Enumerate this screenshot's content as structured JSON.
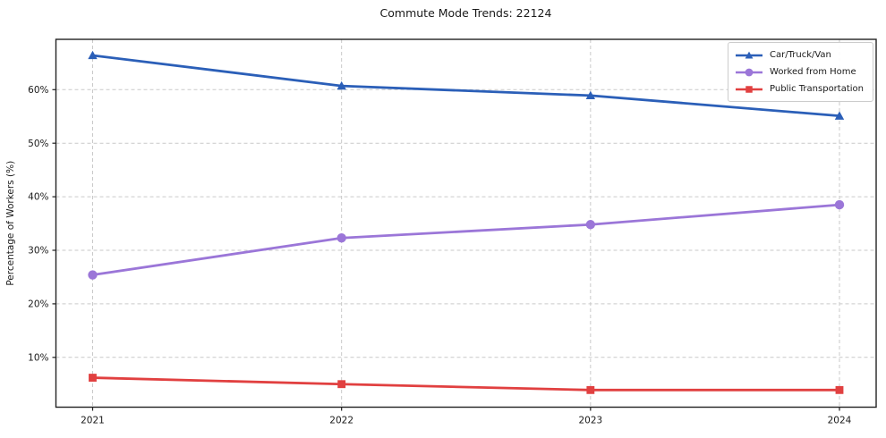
{
  "title": "Commute Mode Trends: 22124",
  "chart_data": {
    "type": "line",
    "title": "Commute Mode Trends: 22124",
    "xlabel": "",
    "ylabel": "Percentage of Workers (%)",
    "x_tick_labels": [
      "2021",
      "2022",
      "2023",
      "2024"
    ],
    "y_ticks": [
      10,
      20,
      30,
      40,
      50,
      60
    ],
    "y_tick_labels": [
      "10%",
      "20%",
      "30%",
      "40%",
      "50%",
      "60%"
    ],
    "ylim": [
      0.7,
      69.4
    ],
    "grid": "dashed-both-axes",
    "legend_position": "upper right",
    "series": [
      {
        "name": "Car/Truck/Van",
        "color": "#2b5fb8",
        "marker": "triangle",
        "values": [
          66.4,
          60.7,
          58.9,
          55.1
        ]
      },
      {
        "name": "Worked from Home",
        "color": "#9b76d8",
        "marker": "circle",
        "values": [
          25.4,
          32.3,
          34.8,
          38.5
        ]
      },
      {
        "name": "Public Transportation",
        "color": "#e14040",
        "marker": "square",
        "values": [
          6.2,
          5.0,
          3.9,
          3.9
        ]
      }
    ],
    "colors": {
      "grid": "#c9c9c9",
      "axis": "#222222",
      "text": "#1a1a1a",
      "background": "#ffffff"
    }
  }
}
